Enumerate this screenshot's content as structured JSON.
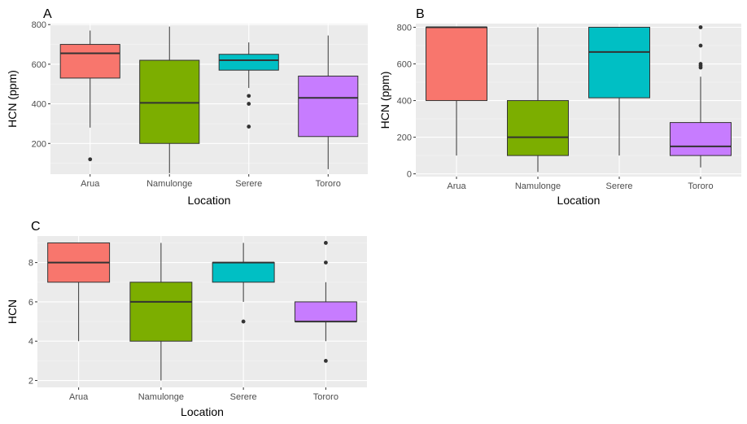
{
  "colors": {
    "panel_background": "#ebebeb",
    "major_grid": "#ffffff",
    "minor_grid": "#f5f5f5",
    "box_outline": "#333333",
    "Arua": "#f8766d",
    "Namulonge": "#7cae00",
    "Serere": "#00bfc4",
    "Tororo": "#c77cff"
  },
  "chart_data": [
    {
      "panel": "A",
      "type": "boxplot",
      "xlabel": "Location",
      "ylabel": "HCN (ppm)",
      "categories": [
        "Arua",
        "Namulonge",
        "Serere",
        "Tororo"
      ],
      "ylim": [
        45,
        805
      ],
      "yticks": [
        200,
        400,
        600,
        800
      ],
      "grid": true,
      "legend": "none",
      "boxes": [
        {
          "category": "Arua",
          "whisker_low": 280,
          "q1": 530,
          "median": 655,
          "q3": 700,
          "whisker_high": 770,
          "outliers": [
            120
          ]
        },
        {
          "category": "Namulonge",
          "whisker_low": 50,
          "q1": 200,
          "median": 405,
          "q3": 620,
          "whisker_high": 790,
          "outliers": []
        },
        {
          "category": "Serere",
          "whisker_low": 480,
          "q1": 570,
          "median": 620,
          "q3": 650,
          "whisker_high": 710,
          "outliers": [
            440,
            400,
            285
          ]
        },
        {
          "category": "Tororo",
          "whisker_low": 70,
          "q1": 235,
          "median": 430,
          "q3": 540,
          "whisker_high": 745,
          "outliers": []
        }
      ]
    },
    {
      "panel": "B",
      "type": "boxplot",
      "xlabel": "Location",
      "ylabel": "HCN (ppm)",
      "categories": [
        "Arua",
        "Namulonge",
        "Serere",
        "Tororo"
      ],
      "ylim": [
        -15,
        820
      ],
      "yticks": [
        0,
        200,
        400,
        600,
        800
      ],
      "grid": true,
      "legend": "none",
      "boxes": [
        {
          "category": "Arua",
          "whisker_low": 100,
          "q1": 400,
          "median": 800,
          "q3": 800,
          "whisker_high": 800,
          "outliers": []
        },
        {
          "category": "Namulonge",
          "whisker_low": 10,
          "q1": 100,
          "median": 200,
          "q3": 400,
          "whisker_high": 800,
          "outliers": []
        },
        {
          "category": "Serere",
          "whisker_low": 100,
          "q1": 415,
          "median": 665,
          "q3": 800,
          "whisker_high": 800,
          "outliers": []
        },
        {
          "category": "Tororo",
          "whisker_low": 35,
          "q1": 100,
          "median": 150,
          "q3": 280,
          "whisker_high": 530,
          "outliers": [
            800,
            700,
            600,
            590,
            580
          ]
        }
      ]
    },
    {
      "panel": "C",
      "type": "boxplot",
      "xlabel": "Location",
      "ylabel": "HCN",
      "categories": [
        "Arua",
        "Namulonge",
        "Serere",
        "Tororo"
      ],
      "ylim": [
        1.65,
        9.35
      ],
      "yticks": [
        2,
        4,
        6,
        8
      ],
      "grid": true,
      "legend": "none",
      "boxes": [
        {
          "category": "Arua",
          "whisker_low": 4,
          "q1": 7,
          "median": 8,
          "q3": 9,
          "whisker_high": 9,
          "outliers": []
        },
        {
          "category": "Namulonge",
          "whisker_low": 2,
          "q1": 4,
          "median": 6,
          "q3": 7,
          "whisker_high": 9,
          "outliers": []
        },
        {
          "category": "Serere",
          "whisker_low": 6,
          "q1": 7,
          "median": 8,
          "q3": 8,
          "whisker_high": 9,
          "outliers": [
            5
          ]
        },
        {
          "category": "Tororo",
          "whisker_low": 4,
          "q1": 5,
          "median": 5,
          "q3": 6,
          "whisker_high": 7,
          "outliers": [
            9,
            8,
            3
          ]
        }
      ]
    }
  ]
}
